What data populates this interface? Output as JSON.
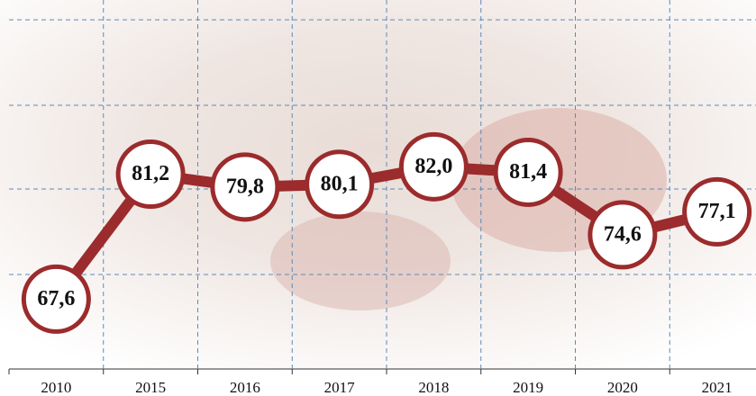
{
  "chart_data": {
    "type": "line",
    "categories": [
      "2010",
      "2015",
      "2016",
      "2017",
      "2018",
      "2019",
      "2020",
      "2021"
    ],
    "series": [
      {
        "color": "#9b2b2c",
        "values": [
          67.6,
          81.2,
          79.8,
          80.1,
          82.0,
          81.4,
          74.6,
          77.1
        ],
        "value_labels": [
          "67,6",
          "81,2",
          "79,8",
          "80,1",
          "82,0",
          "81,4",
          "74,6",
          "77,1"
        ]
      }
    ],
    "ylim": [
      60,
      98
    ],
    "grid": true
  }
}
